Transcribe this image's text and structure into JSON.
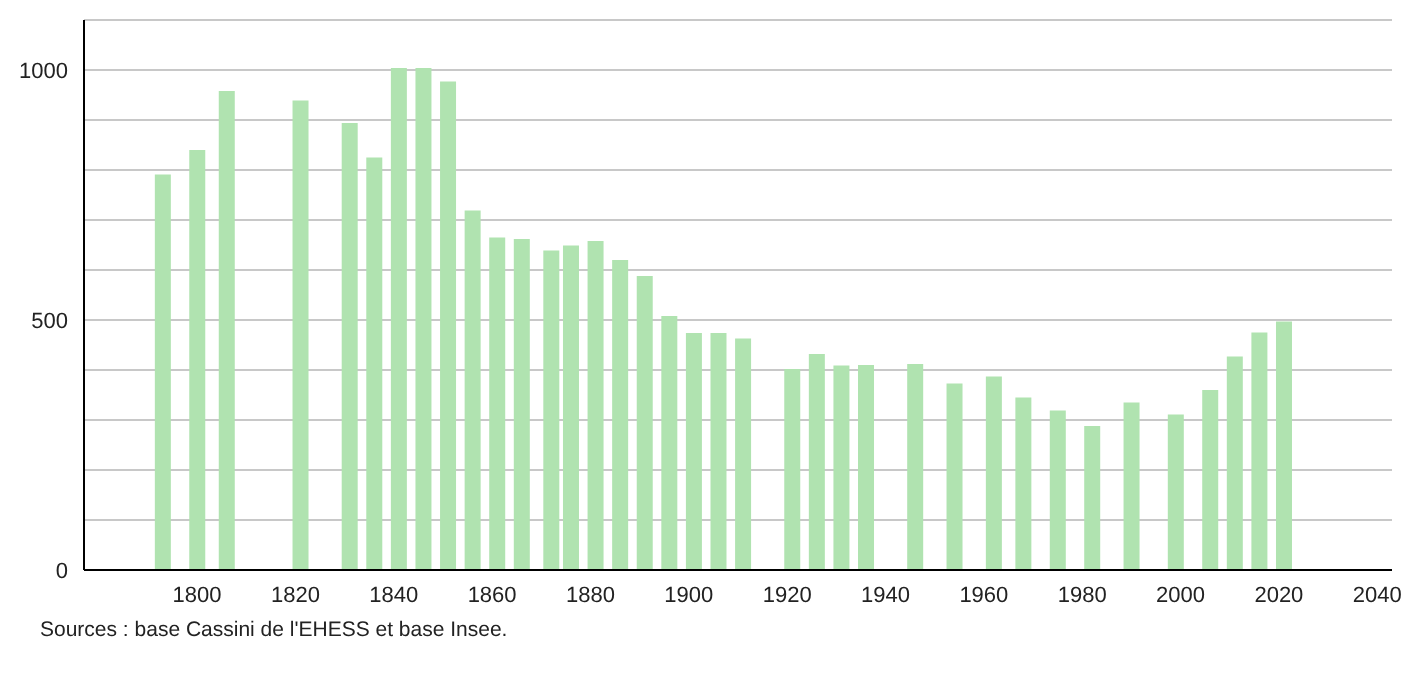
{
  "chart_data": {
    "type": "bar",
    "x": [
      1793,
      1800,
      1806,
      1821,
      1831,
      1836,
      1841,
      1846,
      1851,
      1856,
      1861,
      1866,
      1872,
      1876,
      1881,
      1886,
      1891,
      1896,
      1901,
      1906,
      1911,
      1921,
      1926,
      1931,
      1936,
      1946,
      1954,
      1962,
      1968,
      1975,
      1982,
      1990,
      1999,
      2006,
      2011,
      2016,
      2021
    ],
    "values": [
      791,
      840,
      958,
      939,
      894,
      825,
      1004,
      1004,
      977,
      719,
      665,
      662,
      639,
      649,
      658,
      620,
      588,
      508,
      474,
      474,
      463,
      402,
      432,
      409,
      410,
      412,
      373,
      387,
      345,
      319,
      288,
      335,
      311,
      360,
      427,
      475,
      497
    ],
    "color": "#b0e3b0",
    "xlim": [
      1777,
      2043
    ],
    "xticks": [
      1800,
      1820,
      1840,
      1860,
      1880,
      1900,
      1920,
      1940,
      1960,
      1980,
      2000,
      2020,
      2040
    ],
    "ylim": [
      0,
      1100
    ],
    "yticks": [
      0,
      {
        "value": 100,
        "label": null
      },
      {
        "value": 200,
        "label": null
      },
      {
        "value": 300,
        "label": null
      },
      {
        "value": 400,
        "label": null
      },
      500,
      {
        "value": 600,
        "label": null
      },
      {
        "value": 700,
        "label": null
      },
      {
        "value": 800,
        "label": null
      },
      {
        "value": 900,
        "label": null
      },
      1000,
      {
        "value": 1100,
        "label": null
      }
    ],
    "grid": "y",
    "annotations": [
      "Sources : base Cassini de l'EHESS et base Insee."
    ]
  }
}
